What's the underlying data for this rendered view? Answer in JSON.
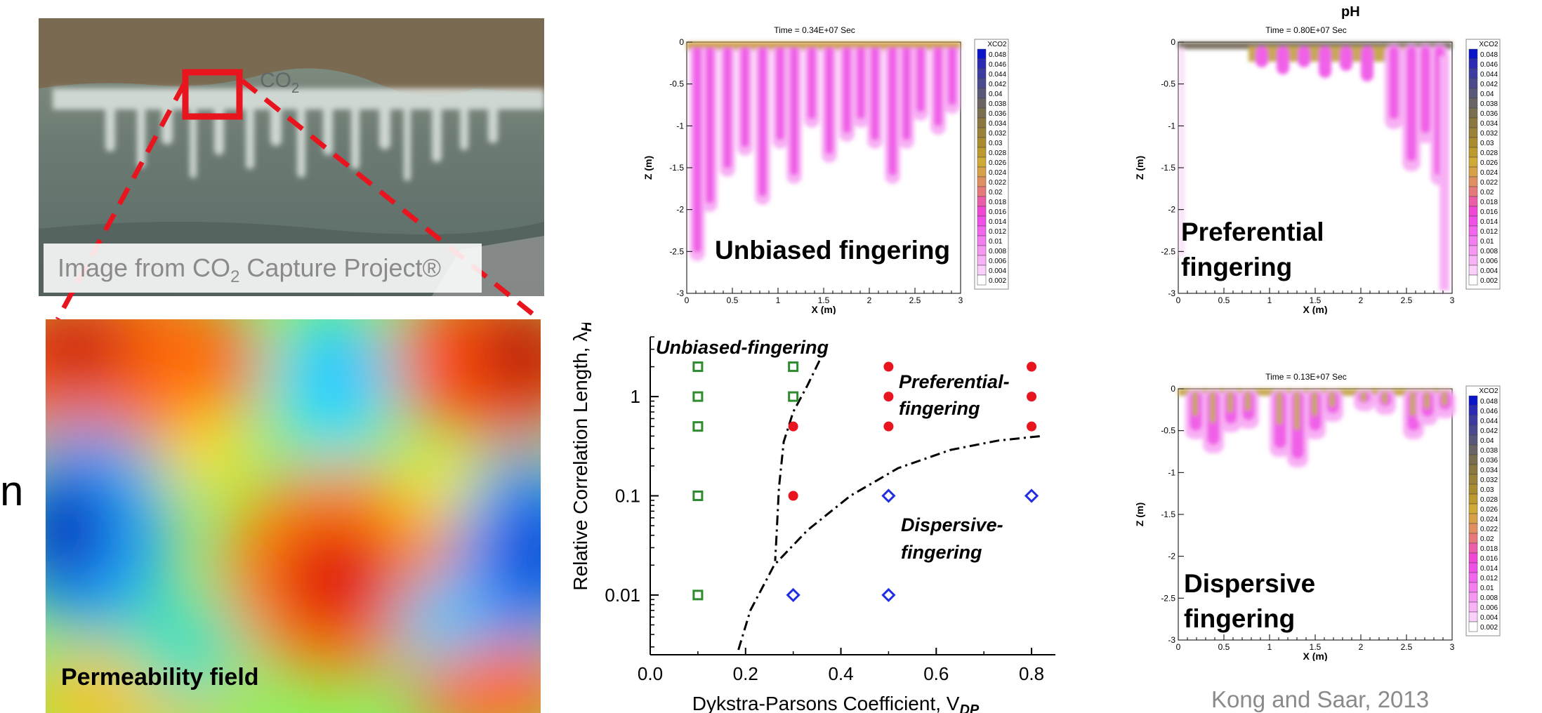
{
  "photo": {
    "co2_label": "CO",
    "co2_sub": "2",
    "caption_pre": "Image from CO",
    "caption_sub": "2",
    "caption_post": " Capture Project®"
  },
  "permeability": {
    "label": "Permeability field"
  },
  "left_fragment": "n",
  "panels": {
    "unbiased": {
      "time": "Time = 0.34E+07 Sec",
      "label": "Unbiased fingering"
    },
    "preferential": {
      "header": "pH",
      "time": "Time = 0.80E+07 Sec",
      "label_line1": "Preferential",
      "label_line2": "fingering"
    },
    "dispersive": {
      "time": "Time = 0.13E+07 Sec",
      "label_line1": "Dispersive",
      "label_line2": "fingering"
    },
    "axes": {
      "xlabel": "X (m)",
      "ylabel": "Z (m)",
      "xticks": [
        "0",
        "0.5",
        "1",
        "1.5",
        "2",
        "2.5",
        "3"
      ],
      "yticks": [
        "0",
        "-0.5",
        "-1",
        "-1.5",
        "-2",
        "-2.5",
        "-3"
      ]
    },
    "legend": {
      "title": "XCO2",
      "values": [
        "0.048",
        "0.046",
        "0.044",
        "0.042",
        "0.04",
        "0.038",
        "0.036",
        "0.034",
        "0.032",
        "0.03",
        "0.028",
        "0.026",
        "0.024",
        "0.022",
        "0.02",
        "0.018",
        "0.016",
        "0.014",
        "0.012",
        "0.01",
        "0.008",
        "0.006",
        "0.004",
        "0.002"
      ],
      "colors": [
        "#0a14c8",
        "#2a2ab4",
        "#3c3ca0",
        "#4a4a8c",
        "#5a5878",
        "#6a6464",
        "#7a6e50",
        "#8a7840",
        "#9a8238",
        "#aa8c30",
        "#bc9a30",
        "#d0aa36",
        "#d8a048",
        "#e09060",
        "#e67a7a",
        "#ec5ea8",
        "#f048d4",
        "#f050e8",
        "#f266ee",
        "#f47ef0",
        "#f698f2",
        "#f8b2f6",
        "#fbd0fa",
        "#ffffff"
      ]
    }
  },
  "chart_data": {
    "type": "scatter",
    "xlabel": "Dykstra-Parsons Coefficient, V",
    "xlabel_sub": "DP",
    "ylabel": "Relative Correlation Length, λ",
    "ylabel_sub": "H",
    "x_range": [
      0,
      0.85
    ],
    "y_scale": "log",
    "y_range": [
      0.0025,
      4
    ],
    "xticks": [
      "0.0",
      "0.2",
      "0.4",
      "0.6",
      "0.8"
    ],
    "yticks": [
      "0.01",
      "0.1",
      "1"
    ],
    "region_labels": [
      "Unbiased-fingering",
      "Preferential-",
      "fingering",
      "Dispersive-",
      "fingering"
    ],
    "series": [
      {
        "name": "",
        "marker": "open-square",
        "color": "#2e8b2e",
        "points": [
          [
            0.1,
            2
          ],
          [
            0.1,
            1
          ],
          [
            0.1,
            0.5
          ],
          [
            0.1,
            0.1
          ],
          [
            0.1,
            0.01
          ],
          [
            0.3,
            2
          ],
          [
            0.3,
            1
          ]
        ]
      },
      {
        "name": "",
        "marker": "filled-circle",
        "color": "#e8141e",
        "points": [
          [
            0.3,
            0.5
          ],
          [
            0.3,
            0.1
          ],
          [
            0.5,
            2
          ],
          [
            0.5,
            1
          ],
          [
            0.5,
            0.5
          ],
          [
            0.8,
            2
          ],
          [
            0.8,
            1
          ],
          [
            0.8,
            0.5
          ]
        ]
      },
      {
        "name": "",
        "marker": "open-diamond",
        "color": "#1f2ee0",
        "points": [
          [
            0.5,
            0.1
          ],
          [
            0.8,
            0.1
          ],
          [
            0.3,
            0.01
          ],
          [
            0.5,
            0.01
          ]
        ]
      }
    ],
    "boundaries": [
      [
        [
          0.355,
          2.3
        ],
        [
          0.33,
          1.3
        ],
        [
          0.3,
          0.7
        ],
        [
          0.28,
          0.35
        ],
        [
          0.27,
          0.12
        ],
        [
          0.265,
          0.04
        ],
        [
          0.262,
          0.022
        ]
      ],
      [
        [
          0.185,
          0.0028
        ],
        [
          0.21,
          0.007
        ],
        [
          0.26,
          0.02
        ],
        [
          0.33,
          0.045
        ],
        [
          0.42,
          0.1
        ],
        [
          0.52,
          0.19
        ],
        [
          0.63,
          0.29
        ],
        [
          0.73,
          0.36
        ],
        [
          0.82,
          0.4
        ]
      ]
    ]
  },
  "citation": "Kong and Saar, 2013"
}
